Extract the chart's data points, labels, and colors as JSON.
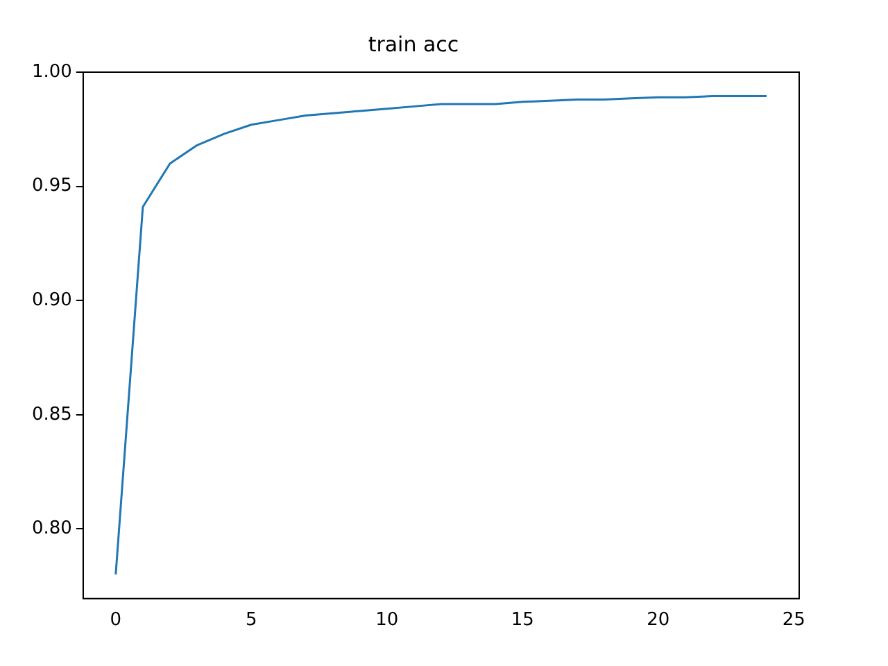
{
  "chart_data": {
    "type": "line",
    "title": "train acc",
    "x": [
      0,
      1,
      2,
      3,
      4,
      5,
      6,
      7,
      8,
      9,
      10,
      11,
      12,
      13,
      14,
      15,
      16,
      17,
      18,
      19,
      20,
      21,
      22,
      23,
      24
    ],
    "series": [
      {
        "color": "#1f77b4",
        "values": [
          0.78,
          0.941,
          0.96,
          0.968,
          0.973,
          0.977,
          0.979,
          0.981,
          0.982,
          0.983,
          0.984,
          0.985,
          0.986,
          0.986,
          0.986,
          0.987,
          0.9875,
          0.988,
          0.988,
          0.9885,
          0.989,
          0.989,
          0.9895,
          0.9895,
          0.9895
        ]
      }
    ],
    "xlim": [
      -1.2,
      25.2
    ],
    "xticks": [
      0,
      5,
      10,
      15,
      20,
      25
    ],
    "ylim": [
      0.7695,
      1.0
    ],
    "yticks": [
      {
        "value": 0.8,
        "label": "0.80"
      },
      {
        "value": 0.85,
        "label": "0.85"
      },
      {
        "value": 0.9,
        "label": "0.90"
      },
      {
        "value": 0.95,
        "label": "0.95"
      },
      {
        "value": 1.0,
        "label": "1.00"
      }
    ],
    "grid": false,
    "legend": false,
    "marker": "none",
    "line_style": "solid"
  }
}
